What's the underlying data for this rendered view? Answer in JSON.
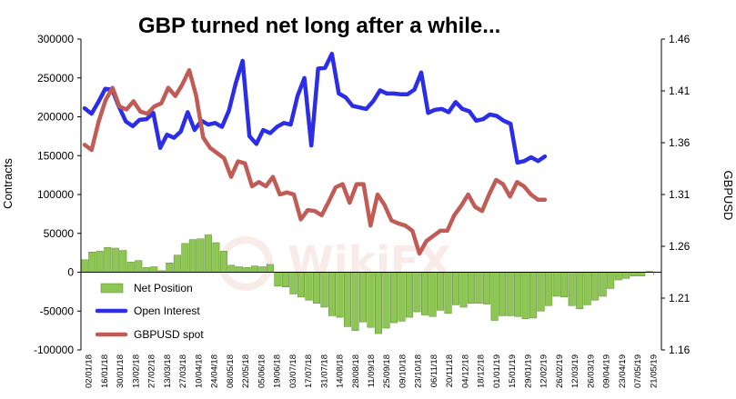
{
  "chart_data": {
    "type": "bar+line",
    "title": "GBP turned net long after a while...",
    "ylabel_left": "Contracts",
    "ylabel_right": "GBPUSD",
    "ylim_left": [
      -100000,
      300000
    ],
    "ylim_right": [
      1.16,
      1.46
    ],
    "yticks_left": [
      "300000",
      "250000",
      "200000",
      "150000",
      "100000",
      "50000",
      "0",
      "-50000",
      "-100000"
    ],
    "yticks_right": [
      "1.46",
      "1.41",
      "1.36",
      "1.31",
      "1.26",
      "1.21",
      "1.16"
    ],
    "xtick_labels": [
      "02/01/18",
      "16/01/18",
      "30/01/18",
      "13/02/18",
      "27/02/18",
      "13/03/18",
      "27/03/18",
      "10/04/18",
      "24/04/18",
      "08/05/18",
      "22/05/18",
      "05/06/18",
      "19/06/18",
      "03/07/18",
      "17/07/18",
      "31/07/18",
      "14/08/18",
      "28/08/18",
      "11/09/18",
      "25/09/18",
      "09/10/18",
      "23/10/18",
      "06/11/18",
      "20/11/18",
      "04/12/18",
      "18/12/18",
      "01/01/19",
      "15/01/19",
      "29/01/19",
      "12/02/19",
      "26/02/19",
      "12/03/19",
      "26/03/19",
      "09/04/19",
      "23/04/19",
      "07/05/19",
      "21/05/19"
    ],
    "legend": [
      "Net Position",
      "Open Interest",
      "GBPUSD spot"
    ],
    "legend_position": "lower-left",
    "watermark": "WikiFX",
    "series": [
      {
        "name": "Net Position",
        "type": "bar",
        "axis": "left",
        "color": "#8dc653",
        "values": [
          16000,
          26000,
          27000,
          32000,
          31000,
          28000,
          13000,
          15000,
          6000,
          7000,
          2000,
          12000,
          22000,
          37000,
          42000,
          43000,
          48000,
          38000,
          27000,
          9000,
          7000,
          6000,
          8000,
          7000,
          10000,
          -18000,
          -19000,
          -28000,
          -32000,
          -36000,
          -40000,
          -45000,
          -56000,
          -58000,
          -70000,
          -75000,
          -64000,
          -71000,
          -79000,
          -72000,
          -65000,
          -63000,
          -58000,
          -51000,
          -55000,
          -57000,
          -49000,
          -53000,
          -42000,
          -45000,
          -40000,
          -40000,
          -41000,
          -62000,
          -56000,
          -56000,
          -57000,
          -60000,
          -59000,
          -50000,
          -43000,
          -31000,
          -32000,
          -43000,
          -47000,
          -42000,
          -36000,
          -31000,
          -21000,
          -10000,
          -8000,
          -5000,
          -5000,
          1000
        ]
      },
      {
        "name": "Open Interest",
        "type": "line",
        "axis": "left",
        "color": "#2b2ee6",
        "values": [
          211000,
          204000,
          219000,
          236000,
          235000,
          213000,
          194000,
          188000,
          196000,
          197000,
          205000,
          160000,
          177000,
          173000,
          181000,
          206000,
          183000,
          195000,
          190000,
          192000,
          187000,
          208000,
          243000,
          272000,
          175000,
          165000,
          183000,
          179000,
          187000,
          192000,
          190000,
          227000,
          250000,
          163000,
          262000,
          263000,
          281000,
          230000,
          225000,
          214000,
          212000,
          210000,
          220000,
          234000,
          230000,
          230000,
          229000,
          229000,
          235000,
          257000,
          205000,
          209000,
          210000,
          206000,
          219000,
          210000,
          207000,
          195000,
          197000,
          203000,
          201000,
          195000,
          191000,
          141000,
          143000,
          148000,
          143000,
          149000
        ]
      },
      {
        "name": "GBPUSD spot",
        "type": "line",
        "axis": "right",
        "color": "#c15b55",
        "values": [
          1.358,
          1.353,
          1.38,
          1.401,
          1.413,
          1.395,
          1.392,
          1.4,
          1.39,
          1.388,
          1.395,
          1.398,
          1.413,
          1.405,
          1.416,
          1.43,
          1.405,
          1.365,
          1.355,
          1.35,
          1.345,
          1.327,
          1.342,
          1.34,
          1.318,
          1.322,
          1.318,
          1.327,
          1.31,
          1.312,
          1.31,
          1.286,
          1.295,
          1.294,
          1.29,
          1.303,
          1.317,
          1.32,
          1.302,
          1.32,
          1.32,
          1.28,
          1.31,
          1.3,
          1.285,
          1.282,
          1.28,
          1.275,
          1.253,
          1.265,
          1.27,
          1.275,
          1.275,
          1.29,
          1.299,
          1.31,
          1.298,
          1.294,
          1.31,
          1.324,
          1.32,
          1.308,
          1.322,
          1.318,
          1.31,
          1.305,
          1.305
        ]
      }
    ]
  }
}
